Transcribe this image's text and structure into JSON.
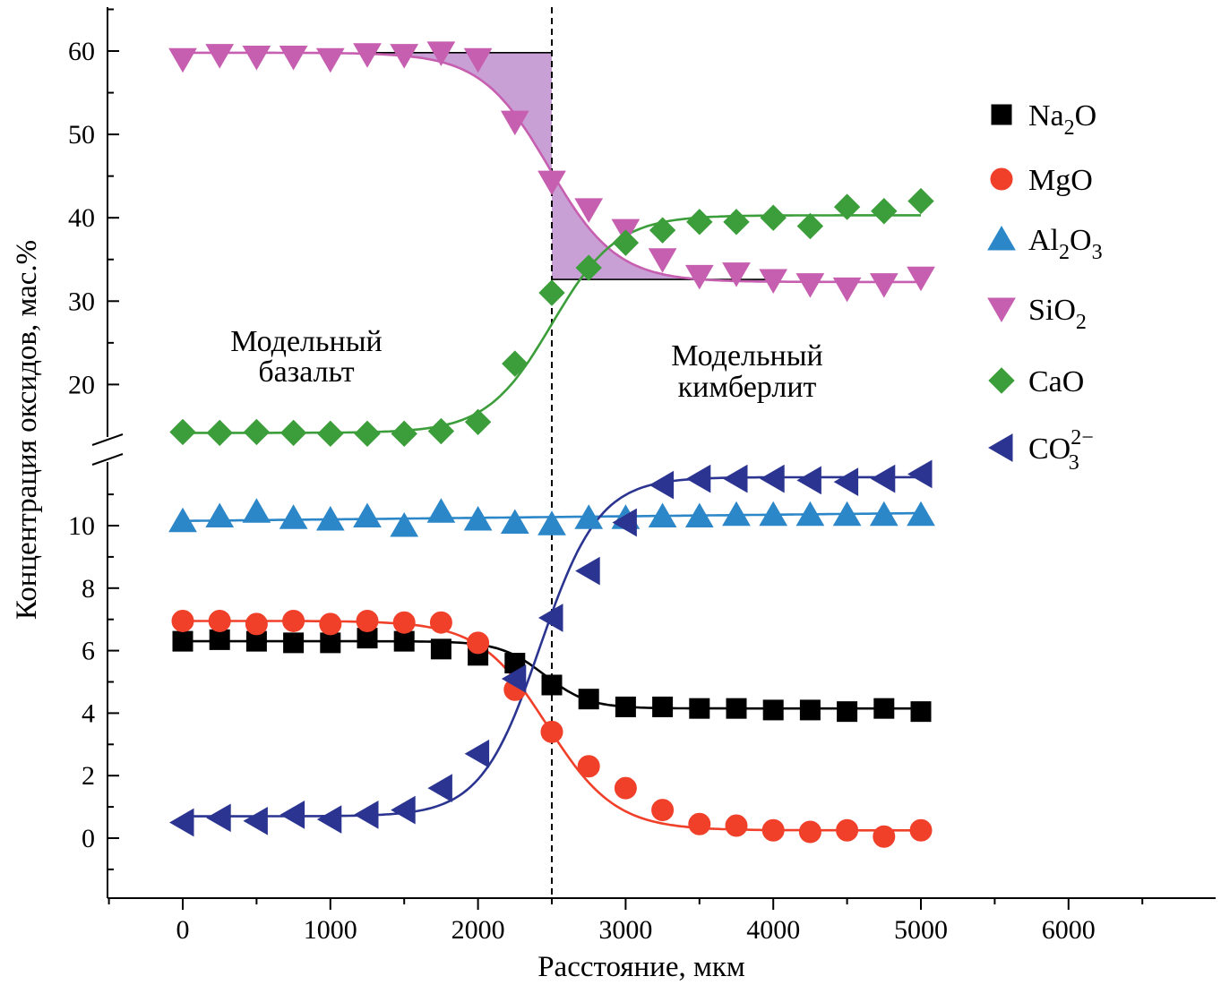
{
  "chart_data": {
    "type": "scatter",
    "xlabel": "Расстояние, мкм",
    "ylabel": "Концентрация оксидов, мас.%",
    "xlim": [
      -500,
      6900
    ],
    "ylim_upper": [
      12.5,
      65
    ],
    "ylim_lower": [
      -2,
      11.8
    ],
    "axis_break": true,
    "x_ticks": [
      0,
      1000,
      2000,
      3000,
      4000,
      5000,
      6000
    ],
    "y_ticks_upper": [
      20,
      30,
      40,
      50,
      60
    ],
    "y_ticks_lower": [
      0,
      2,
      4,
      6,
      8,
      10
    ],
    "boundary_x": 2500,
    "legend_position": "right",
    "annotations": [
      {
        "lines": [
          "Модельный",
          "базальт"
        ]
      },
      {
        "lines": [
          "Модельный",
          "кимберлит"
        ]
      }
    ],
    "shaded_region": {
      "series": "SiO2",
      "upper_level": 59.8,
      "lower_level": 32.6,
      "x_from": 1300,
      "x_to": 4000,
      "color": "#c9a0d6"
    },
    "series": [
      {
        "name": "Na2O",
        "label_main": "Na",
        "label_sub": "2",
        "label_tail": "O",
        "marker": "square",
        "color": "#000000",
        "panel": "lower",
        "x": [
          0,
          250,
          500,
          750,
          1000,
          1250,
          1500,
          1750,
          2000,
          2250,
          2500,
          2750,
          3000,
          3250,
          3500,
          3750,
          4000,
          4250,
          4500,
          4750,
          5000
        ],
        "y": [
          6.3,
          6.35,
          6.3,
          6.25,
          6.25,
          6.4,
          6.3,
          6.05,
          5.85,
          5.6,
          4.9,
          4.45,
          4.2,
          4.2,
          4.15,
          4.15,
          4.1,
          4.1,
          4.05,
          4.15,
          4.05
        ],
        "fit": {
          "a": 6.3,
          "b": 4.15,
          "x0": 2450,
          "w": 150
        }
      },
      {
        "name": "MgO",
        "label_main": "MgO",
        "label_sub": "",
        "label_tail": "",
        "marker": "circle",
        "color": "#f0402a",
        "panel": "lower",
        "x": [
          0,
          250,
          500,
          750,
          1000,
          1250,
          1500,
          1750,
          2000,
          2250,
          2500,
          2750,
          3000,
          3250,
          3500,
          3750,
          4000,
          4250,
          4500,
          4750,
          5000
        ],
        "y": [
          6.95,
          6.95,
          6.85,
          6.95,
          6.85,
          6.95,
          6.9,
          6.9,
          6.25,
          4.75,
          3.4,
          2.3,
          1.6,
          0.9,
          0.45,
          0.4,
          0.25,
          0.2,
          0.25,
          0.05,
          0.25
        ],
        "fit": {
          "a": 6.95,
          "b": 0.25,
          "x0": 2470,
          "w": 230
        }
      },
      {
        "name": "Al2O3",
        "label_main": "Al",
        "label_sub": "2",
        "label_tail": "O",
        "label_sub2": "3",
        "marker": "triangle-up",
        "color": "#2c87c9",
        "panel": "lower",
        "x": [
          0,
          250,
          500,
          750,
          1000,
          1250,
          1500,
          1750,
          2000,
          2250,
          2500,
          2750,
          3000,
          3250,
          3500,
          3750,
          4000,
          4250,
          4500,
          4750,
          5000
        ],
        "y": [
          10.15,
          10.3,
          10.45,
          10.25,
          10.2,
          10.3,
          10.0,
          10.45,
          10.2,
          10.1,
          10.05,
          10.25,
          10.25,
          10.3,
          10.3,
          10.35,
          10.35,
          10.35,
          10.35,
          10.35,
          10.35
        ],
        "fit": {
          "linear": [
            10.15,
            10.4
          ]
        }
      },
      {
        "name": "SiO2",
        "label_main": "SiO",
        "label_sub": "2",
        "label_tail": "",
        "marker": "triangle-down",
        "color": "#c75fb0",
        "panel": "upper",
        "x": [
          0,
          250,
          500,
          750,
          1000,
          1250,
          1500,
          1750,
          2000,
          2250,
          2500,
          2750,
          3000,
          3250,
          3500,
          3750,
          4000,
          4250,
          4500,
          4750,
          5000
        ],
        "y": [
          59.0,
          59.5,
          59.3,
          59.3,
          59.0,
          59.6,
          59.5,
          59.8,
          59.0,
          51.5,
          44.3,
          41.0,
          38.5,
          35.0,
          33.0,
          33.3,
          32.5,
          32.0,
          31.5,
          32.0,
          32.8
        ],
        "fit": {
          "a": 59.8,
          "b": 32.3,
          "x0": 2480,
          "w": 230
        }
      },
      {
        "name": "CaO",
        "label_main": "CaO",
        "label_sub": "",
        "label_tail": "",
        "marker": "diamond",
        "color": "#3c9e3a",
        "panel": "upper",
        "x": [
          0,
          250,
          500,
          750,
          1000,
          1250,
          1500,
          1750,
          2000,
          2250,
          2500,
          2750,
          3000,
          3250,
          3500,
          3750,
          4000,
          4250,
          4500,
          4750,
          5000
        ],
        "y": [
          14.3,
          14.2,
          14.3,
          14.2,
          14.1,
          14.1,
          14.1,
          14.4,
          15.5,
          22.5,
          31.0,
          34.0,
          37.0,
          38.5,
          39.5,
          39.5,
          40.0,
          39.0,
          41.3,
          40.8,
          42.0
        ],
        "fit": {
          "a": 14.2,
          "b": 40.3,
          "x0": 2500,
          "w": 220
        }
      },
      {
        "name": "CO3 2-",
        "label_main": "CO",
        "label_sub": "3",
        "label_tail": "",
        "label_sup": "2−",
        "marker": "triangle-left",
        "color": "#2b3591",
        "panel": "lower",
        "x": [
          0,
          250,
          500,
          750,
          1000,
          1250,
          1500,
          1750,
          2000,
          2250,
          2500,
          2750,
          3000,
          3250,
          3500,
          3750,
          4000,
          4250,
          4500,
          4750,
          5000
        ],
        "y": [
          0.5,
          0.65,
          0.55,
          0.75,
          0.6,
          0.75,
          0.9,
          1.6,
          2.7,
          5.1,
          7.05,
          8.55,
          10.1,
          11.3,
          11.5,
          11.5,
          11.5,
          11.45,
          11.4,
          11.5,
          11.65
        ],
        "fit": {
          "a": 0.7,
          "b": 11.55,
          "x0": 2420,
          "w": 200
        }
      }
    ]
  }
}
